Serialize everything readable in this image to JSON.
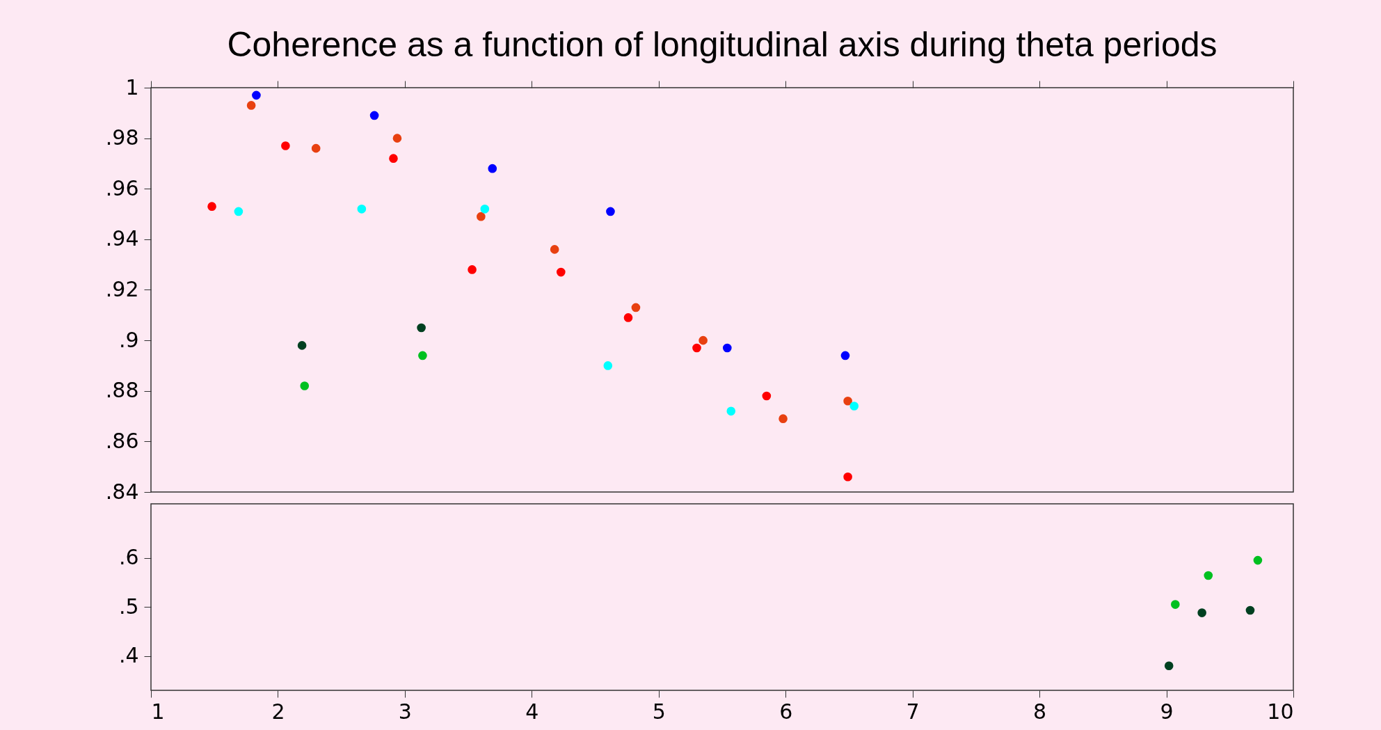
{
  "chart_data": [
    {
      "type": "scatter",
      "title": "Coherence as a function of longitudinal axis during theta periods",
      "marker": "circle",
      "tick_labels": "y",
      "xlim": [
        1,
        10
      ],
      "xticks": [
        1,
        2,
        3,
        4,
        5,
        6,
        7,
        8,
        9,
        10
      ],
      "ylim": [
        0.84,
        1
      ],
      "yticks": [
        {
          "value": 0.84,
          "label": ".84"
        },
        {
          "value": 0.86,
          "label": ".86"
        },
        {
          "value": 0.88,
          "label": ".88"
        },
        {
          "value": 0.9,
          "label": ".9"
        },
        {
          "value": 0.92,
          "label": ".92"
        },
        {
          "value": 0.94,
          "label": ".94"
        },
        {
          "value": 0.96,
          "label": ".96"
        },
        {
          "value": 0.98,
          "label": ".98"
        },
        1
      ],
      "series": [
        {
          "color": "#ff0000",
          "x": [
            1.48,
            2.06,
            2.91,
            3.53,
            4.23,
            4.76,
            5.3,
            5.85,
            6.49
          ],
          "values": [
            0.953,
            0.977,
            0.972,
            0.928,
            0.927,
            0.909,
            0.897,
            0.878,
            0.846
          ]
        },
        {
          "color": "#e84010",
          "x": [
            1.79,
            2.3,
            2.94,
            3.6,
            4.18,
            4.82,
            5.35,
            5.98,
            6.49
          ],
          "values": [
            0.993,
            0.976,
            0.98,
            0.949,
            0.936,
            0.913,
            0.9,
            0.869,
            0.876
          ]
        },
        {
          "color": "#0000ff",
          "x": [
            1.83,
            2.76,
            3.69,
            4.62,
            5.54,
            6.47
          ],
          "values": [
            0.997,
            0.989,
            0.968,
            0.951,
            0.897,
            0.894
          ]
        },
        {
          "color": "#00ffff",
          "x": [
            1.69,
            2.66,
            3.63,
            4.6,
            5.57,
            6.54
          ],
          "values": [
            0.951,
            0.952,
            0.952,
            0.89,
            0.872,
            0.874
          ]
        },
        {
          "color": "#004020",
          "x": [
            2.19,
            3.13
          ],
          "values": [
            0.898,
            0.905
          ]
        },
        {
          "color": "#00c020",
          "x": [
            2.21,
            3.14
          ],
          "values": [
            0.882,
            0.894
          ]
        }
      ]
    },
    {
      "type": "scatter",
      "marker": "circle",
      "xlim": [
        1,
        10
      ],
      "xticks": [
        1,
        2,
        3,
        4,
        5,
        6,
        7,
        8,
        9,
        10
      ],
      "ylim": [
        0.33,
        0.71
      ],
      "yticks": [
        {
          "value": 0.4,
          "label": ".4"
        },
        {
          "value": 0.5,
          "label": ".5"
        },
        {
          "value": 0.6,
          "label": ".6"
        }
      ],
      "series": [
        {
          "color": "#004020",
          "x": [
            9.02,
            9.28,
            9.66
          ],
          "values": [
            0.38,
            0.488,
            0.493
          ]
        },
        {
          "color": "#00c020",
          "x": [
            9.07,
            9.33,
            9.72
          ],
          "values": [
            0.505,
            0.564,
            0.595
          ]
        }
      ]
    }
  ]
}
